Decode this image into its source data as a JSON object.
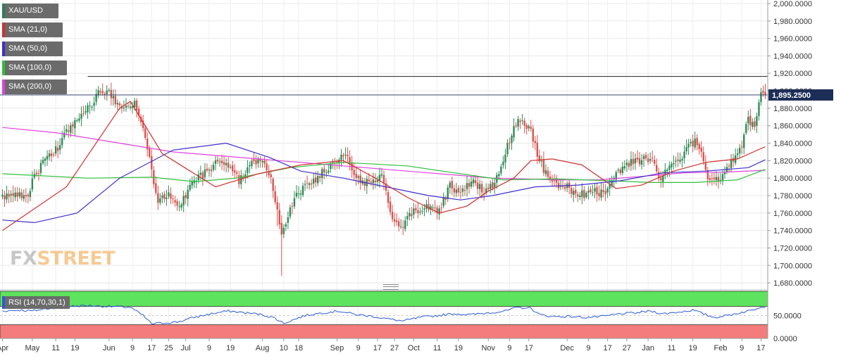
{
  "legend": {
    "items": [
      {
        "label": "XAU/USD",
        "color": "#2e7d5b"
      },
      {
        "label": "SMA (21,0)",
        "color": "#d32f2f"
      },
      {
        "label": "SMA (50,0)",
        "color": "#3f2fcf"
      },
      {
        "label": "SMA (100,0)",
        "color": "#2ec03a"
      },
      {
        "label": "SMA (200,0)",
        "color": "#e040e0"
      }
    ]
  },
  "rsi": {
    "label": "RSI (14,70,30,1)",
    "color": "#2b5bd7"
  },
  "logo": {
    "part1": "FX",
    "part2": "STREET"
  },
  "colors": {
    "bull": "#2e8b57",
    "bear": "#d9534f",
    "sma21": "#d32f2f",
    "sma50": "#3f2fcf",
    "sma100": "#2ec03a",
    "sma200": "#e040e0",
    "rsi_line": "#2b5bd7",
    "overbought": "#5de35d",
    "oversold": "#f47c7c",
    "price_tag": "#1c2e57"
  },
  "chart_data": {
    "type": "candlestick",
    "title": "",
    "price_axis": {
      "min": 1672,
      "max": 2004,
      "ticks": [
        1680,
        1700,
        1720,
        1740,
        1760,
        1780,
        1800,
        1820,
        1840,
        1860,
        1880,
        1900,
        1920,
        1940,
        1960,
        1980,
        2000
      ],
      "tick_labels": [
        "1,680.0000",
        "1,700.0000",
        "1,720.0000",
        "1,740.0000",
        "1,760.0000",
        "1,780.0000",
        "1,800.0000",
        "1,820.0000",
        "1,840.0000",
        "1,860.0000",
        "1,880.0000",
        "1,900.0000",
        "1,920.0000",
        "1,940.0000",
        "1,960.0000",
        "1,980.0000",
        "2,000.0000"
      ]
    },
    "current_price": {
      "value": 1895.25,
      "label": "1,895.2500"
    },
    "resistance_line": 1916.5,
    "date_axis": {
      "labels": [
        "Apr",
        "May",
        "11",
        "19",
        "Jun",
        "9",
        "17",
        "25",
        "Jul",
        "9",
        "19",
        "Aug",
        "10",
        "18",
        "Sep",
        "9",
        "17",
        "27",
        "Oct",
        "11",
        "19",
        "Nov",
        "9",
        "17",
        "Dec",
        "9",
        "17",
        "27",
        "Jan",
        "11",
        "19",
        "Feb",
        "9",
        "17"
      ],
      "index": [
        0,
        14,
        25,
        34,
        50,
        61,
        70,
        78,
        86,
        97,
        107,
        122,
        132,
        139,
        157,
        167,
        176,
        184,
        193,
        204,
        214,
        228,
        238,
        247,
        265,
        275,
        284,
        293,
        303,
        314,
        324,
        337,
        347,
        356
      ]
    },
    "key_points": [
      {
        "i": 0,
        "c": 1780
      },
      {
        "i": 4,
        "c": 1782
      },
      {
        "i": 12,
        "c": 1782
      },
      {
        "i": 15,
        "c": 1803
      },
      {
        "i": 22,
        "c": 1827
      },
      {
        "i": 26,
        "c": 1835
      },
      {
        "i": 30,
        "c": 1852
      },
      {
        "i": 36,
        "c": 1872
      },
      {
        "i": 41,
        "c": 1882
      },
      {
        "i": 46,
        "c": 1902
      },
      {
        "i": 50,
        "c": 1896
      },
      {
        "i": 56,
        "c": 1882
      },
      {
        "i": 62,
        "c": 1888
      },
      {
        "i": 66,
        "c": 1862
      },
      {
        "i": 70,
        "c": 1808
      },
      {
        "i": 73,
        "c": 1772
      },
      {
        "i": 78,
        "c": 1784
      },
      {
        "i": 83,
        "c": 1768
      },
      {
        "i": 90,
        "c": 1800
      },
      {
        "i": 96,
        "c": 1806
      },
      {
        "i": 101,
        "c": 1818
      },
      {
        "i": 106,
        "c": 1812
      },
      {
        "i": 111,
        "c": 1798
      },
      {
        "i": 118,
        "c": 1820
      },
      {
        "i": 123,
        "c": 1820
      },
      {
        "i": 126,
        "c": 1796
      },
      {
        "i": 129,
        "c": 1762
      },
      {
        "i": 131,
        "c": 1740
      },
      {
        "i": 135,
        "c": 1762
      },
      {
        "i": 139,
        "c": 1786
      },
      {
        "i": 144,
        "c": 1792
      },
      {
        "i": 149,
        "c": 1804
      },
      {
        "i": 155,
        "c": 1814
      },
      {
        "i": 161,
        "c": 1826
      },
      {
        "i": 166,
        "c": 1800
      },
      {
        "i": 172,
        "c": 1794
      },
      {
        "i": 178,
        "c": 1802
      },
      {
        "i": 182,
        "c": 1762
      },
      {
        "i": 187,
        "c": 1742
      },
      {
        "i": 193,
        "c": 1762
      },
      {
        "i": 200,
        "c": 1766
      },
      {
        "i": 205,
        "c": 1764
      },
      {
        "i": 210,
        "c": 1790
      },
      {
        "i": 216,
        "c": 1786
      },
      {
        "i": 221,
        "c": 1796
      },
      {
        "i": 227,
        "c": 1784
      },
      {
        "i": 231,
        "c": 1796
      },
      {
        "i": 236,
        "c": 1830
      },
      {
        "i": 240,
        "c": 1860
      },
      {
        "i": 244,
        "c": 1866
      },
      {
        "i": 248,
        "c": 1856
      },
      {
        "i": 251,
        "c": 1826
      },
      {
        "i": 255,
        "c": 1806
      },
      {
        "i": 260,
        "c": 1790
      },
      {
        "i": 265,
        "c": 1790
      },
      {
        "i": 270,
        "c": 1780
      },
      {
        "i": 276,
        "c": 1784
      },
      {
        "i": 283,
        "c": 1784
      },
      {
        "i": 287,
        "c": 1804
      },
      {
        "i": 292,
        "c": 1814
      },
      {
        "i": 298,
        "c": 1820
      },
      {
        "i": 304,
        "c": 1824
      },
      {
        "i": 309,
        "c": 1800
      },
      {
        "i": 314,
        "c": 1812
      },
      {
        "i": 320,
        "c": 1830
      },
      {
        "i": 325,
        "c": 1842
      },
      {
        "i": 328,
        "c": 1826
      },
      {
        "i": 332,
        "c": 1796
      },
      {
        "i": 336,
        "c": 1800
      },
      {
        "i": 341,
        "c": 1814
      },
      {
        "i": 346,
        "c": 1830
      },
      {
        "i": 350,
        "c": 1866
      },
      {
        "i": 353,
        "c": 1860
      },
      {
        "i": 356,
        "c": 1900
      },
      {
        "i": 358,
        "c": 1895
      }
    ],
    "sma21_points": [
      [
        0,
        1740
      ],
      [
        30,
        1790
      ],
      [
        55,
        1880
      ],
      [
        60,
        1888
      ],
      [
        75,
        1828
      ],
      [
        100,
        1790
      ],
      [
        120,
        1805
      ],
      [
        140,
        1815
      ],
      [
        160,
        1820
      ],
      [
        175,
        1800
      ],
      [
        190,
        1778
      ],
      [
        205,
        1760
      ],
      [
        218,
        1768
      ],
      [
        228,
        1785
      ],
      [
        240,
        1800
      ],
      [
        248,
        1820
      ],
      [
        258,
        1822
      ],
      [
        272,
        1815
      ],
      [
        288,
        1788
      ],
      [
        300,
        1792
      ],
      [
        315,
        1808
      ],
      [
        330,
        1818
      ],
      [
        345,
        1822
      ],
      [
        358,
        1836
      ]
    ],
    "sma50_points": [
      [
        0,
        1752
      ],
      [
        15,
        1749
      ],
      [
        35,
        1760
      ],
      [
        55,
        1800
      ],
      [
        80,
        1832
      ],
      [
        105,
        1840
      ],
      [
        125,
        1824
      ],
      [
        140,
        1808
      ],
      [
        160,
        1800
      ],
      [
        180,
        1790
      ],
      [
        200,
        1780
      ],
      [
        215,
        1775
      ],
      [
        230,
        1780
      ],
      [
        250,
        1790
      ],
      [
        270,
        1792
      ],
      [
        290,
        1797
      ],
      [
        310,
        1806
      ],
      [
        330,
        1808
      ],
      [
        350,
        1812
      ],
      [
        358,
        1821
      ]
    ],
    "sma100_points": [
      [
        0,
        1805
      ],
      [
        40,
        1800
      ],
      [
        70,
        1801
      ],
      [
        90,
        1796
      ],
      [
        110,
        1800
      ],
      [
        135,
        1812
      ],
      [
        160,
        1818
      ],
      [
        190,
        1814
      ],
      [
        215,
        1805
      ],
      [
        235,
        1798
      ],
      [
        260,
        1799
      ],
      [
        285,
        1797
      ],
      [
        305,
        1795
      ],
      [
        325,
        1795
      ],
      [
        345,
        1798
      ],
      [
        358,
        1810
      ]
    ],
    "sma200_points": [
      [
        0,
        1858
      ],
      [
        25,
        1852
      ],
      [
        55,
        1840
      ],
      [
        80,
        1830
      ],
      [
        110,
        1824
      ],
      [
        140,
        1818
      ],
      [
        170,
        1812
      ],
      [
        200,
        1806
      ],
      [
        230,
        1800
      ],
      [
        260,
        1798
      ],
      [
        280,
        1798
      ],
      [
        300,
        1802
      ],
      [
        320,
        1806
      ],
      [
        340,
        1807
      ],
      [
        358,
        1809
      ]
    ],
    "rsi": {
      "min": 0,
      "max": 100,
      "overbought": 70,
      "oversold": 30,
      "tick_labels": [
        "0.0000",
        "50.0000"
      ],
      "tick_values": [
        0,
        50
      ],
      "points": [
        [
          0,
          60
        ],
        [
          8,
          62
        ],
        [
          14,
          60
        ],
        [
          22,
          66
        ],
        [
          30,
          70
        ],
        [
          40,
          72
        ],
        [
          50,
          70
        ],
        [
          60,
          68
        ],
        [
          66,
          50
        ],
        [
          70,
          32
        ],
        [
          76,
          34
        ],
        [
          82,
          36
        ],
        [
          90,
          46
        ],
        [
          98,
          54
        ],
        [
          106,
          60
        ],
        [
          114,
          56
        ],
        [
          122,
          52
        ],
        [
          128,
          44
        ],
        [
          132,
          33
        ],
        [
          136,
          40
        ],
        [
          142,
          50
        ],
        [
          150,
          56
        ],
        [
          158,
          60
        ],
        [
          166,
          52
        ],
        [
          174,
          48
        ],
        [
          182,
          42
        ],
        [
          188,
          38
        ],
        [
          196,
          46
        ],
        [
          204,
          50
        ],
        [
          212,
          54
        ],
        [
          220,
          52
        ],
        [
          228,
          56
        ],
        [
          236,
          60
        ],
        [
          242,
          68
        ],
        [
          248,
          66
        ],
        [
          252,
          52
        ],
        [
          258,
          48
        ],
        [
          266,
          48
        ],
        [
          274,
          46
        ],
        [
          282,
          48
        ],
        [
          290,
          54
        ],
        [
          298,
          56
        ],
        [
          304,
          60
        ],
        [
          310,
          54
        ],
        [
          318,
          58
        ],
        [
          324,
          62
        ],
        [
          330,
          52
        ],
        [
          334,
          46
        ],
        [
          340,
          50
        ],
        [
          346,
          56
        ],
        [
          352,
          62
        ],
        [
          356,
          70
        ],
        [
          358,
          70
        ]
      ]
    }
  }
}
